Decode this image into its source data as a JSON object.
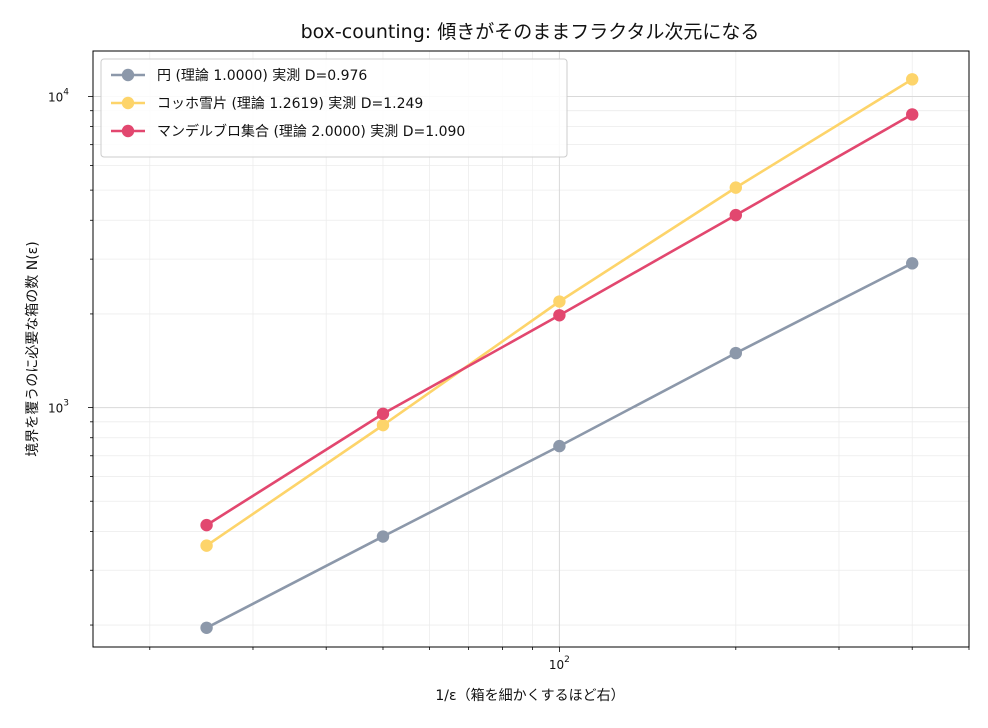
{
  "chart_data": {
    "type": "line",
    "title": "box-counting: 傾きがそのままフラクタル次元になる",
    "xlabel": "1/ε（箱を細かくするほど右）",
    "ylabel": "境界を覆うのに必要な箱の数 N(ε)",
    "x_scale": "log",
    "y_scale": "log",
    "xlim": [
      16,
      500
    ],
    "ylim": [
      170,
      14000
    ],
    "grid": true,
    "legend_position": "upper-left",
    "x_ticks": [
      {
        "base": "10",
        "exp": "2",
        "value": 100
      }
    ],
    "y_ticks": [
      {
        "base": "10",
        "exp": "3",
        "value": 1000
      },
      {
        "base": "10",
        "exp": "4",
        "value": 10000
      }
    ],
    "x": [
      25,
      50,
      100,
      200,
      400
    ],
    "series": [
      {
        "name": "円 (理論 1.0000)  実測 D=0.976",
        "color": "#8c98aa",
        "values": [
          196,
          385,
          752,
          1497,
          2908
        ]
      },
      {
        "name": "コッホ雪片 (理論 1.2619)  実測 D=1.249",
        "color": "#fdd46a",
        "values": [
          360,
          878,
          2192,
          5093,
          11354
        ]
      },
      {
        "name": "マンデルブロ集合 (理論 2.0000)  実測 D=1.090",
        "color": "#e2476f",
        "values": [
          419,
          955,
          1980,
          4155,
          8754
        ]
      }
    ]
  }
}
